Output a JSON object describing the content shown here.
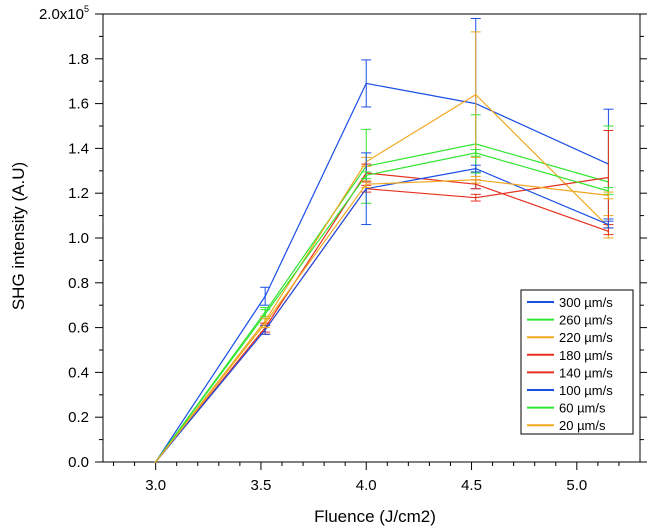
{
  "chart_data": {
    "type": "line",
    "xlabel": "Fluence (J/cm2)",
    "ylabel": "SHG intensity (A.U)",
    "xlim": [
      2.75,
      5.3
    ],
    "ylim": [
      0,
      200000
    ],
    "x_ticks": [
      "3.0",
      "3.5",
      "4.0",
      "4.5",
      "5.0"
    ],
    "x_tick_values": [
      3.0,
      3.5,
      4.0,
      4.5,
      5.0
    ],
    "y_ticks": [
      "0.0",
      "0.2",
      "0.4",
      "0.6",
      "0.8",
      "1.0",
      "1.2",
      "1.4",
      "1.6",
      "1.8"
    ],
    "y_tick_values": [
      0,
      20000,
      40000,
      60000,
      80000,
      100000,
      120000,
      140000,
      160000,
      180000
    ],
    "y_top_label": "2.0x10",
    "y_top_exponent": "5",
    "grid": false,
    "legend_position": "bottom-right",
    "x": [
      3.0,
      3.52,
      4.0,
      4.52,
      5.15
    ],
    "series": [
      {
        "name": "300 µm/s",
        "color": "#1a4fe6",
        "values": [
          0,
          74000,
          169000,
          160000,
          133000
        ],
        "errors": [
          0,
          4000,
          10500,
          38000,
          24500
        ]
      },
      {
        "name": "260 µm/s",
        "color": "#33e633",
        "values": [
          0,
          67000,
          132000,
          142000,
          125000
        ],
        "errors": [
          0,
          2000,
          16500,
          13000,
          25000
        ]
      },
      {
        "name": "220 µm/s",
        "color": "#f0a820",
        "values": [
          0,
          63000,
          134000,
          164000,
          105000
        ],
        "errors": [
          0,
          2000,
          2000,
          28000,
          5000
        ]
      },
      {
        "name": "180 µm/s",
        "color": "#e63020",
        "values": [
          0,
          60000,
          129000,
          124000,
          103000
        ],
        "errors": [
          0,
          2000,
          4000,
          2000,
          1500
        ]
      },
      {
        "name": "140 µm/s",
        "color": "#e63020",
        "values": [
          0,
          59000,
          122000,
          118000,
          127000
        ],
        "errors": [
          0,
          2000,
          1500,
          1500,
          21000
        ]
      },
      {
        "name": "100 µm/s",
        "color": "#1a4fe6",
        "values": [
          0,
          59000,
          122000,
          131000,
          106000
        ],
        "errors": [
          0,
          2000,
          16000,
          1500,
          1500
        ]
      },
      {
        "name": "60 µm/s",
        "color": "#33e633",
        "values": [
          0,
          66000,
          128000,
          138000,
          121000
        ],
        "errors": [
          0,
          2000,
          1500,
          1500,
          1500
        ]
      },
      {
        "name": "20 µm/s",
        "color": "#f0a820",
        "values": [
          0,
          62000,
          124000,
          126000,
          119000
        ],
        "errors": [
          0,
          2000,
          1500,
          1500,
          1500
        ]
      }
    ]
  }
}
